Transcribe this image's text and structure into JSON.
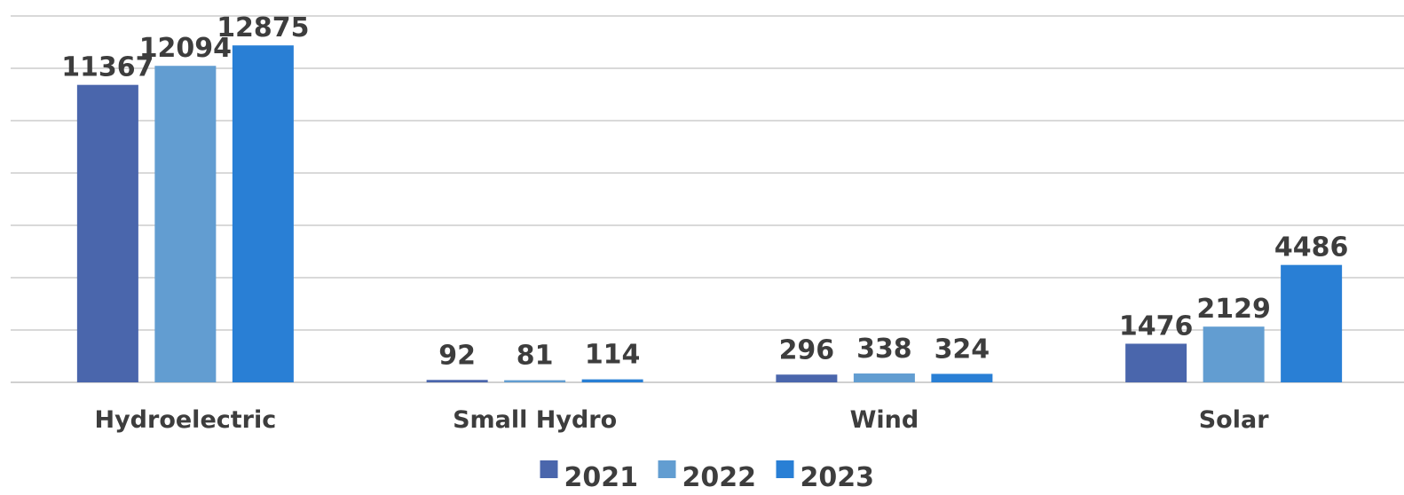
{
  "chart_data": {
    "type": "bar",
    "categories": [
      "Hydroelectric",
      "Small Hydro",
      "Wind",
      "Solar"
    ],
    "series": [
      {
        "name": "2021",
        "values": [
          11367,
          92,
          296,
          1476
        ],
        "color": "#4a66ac"
      },
      {
        "name": "2022",
        "values": [
          12094,
          81,
          338,
          2129
        ],
        "color": "#629dd1"
      },
      {
        "name": "2023",
        "values": [
          12875,
          114,
          324,
          4486
        ],
        "color": "#297fd5"
      }
    ],
    "ylim": [
      0,
      14000
    ],
    "grid": true,
    "legend": "bottom",
    "data_labels": true
  }
}
